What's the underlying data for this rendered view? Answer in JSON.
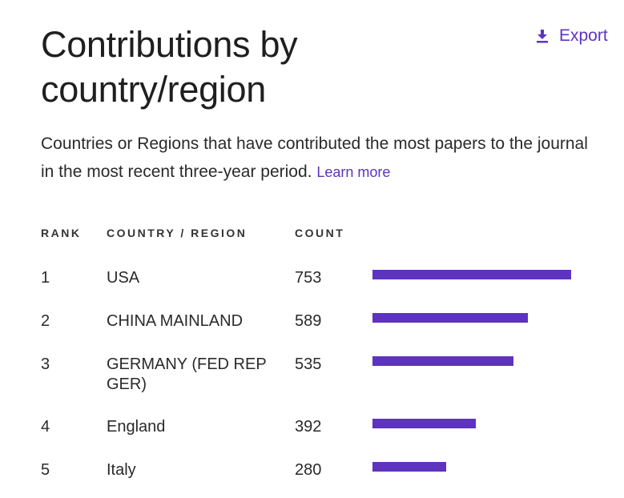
{
  "title": "Contributions by country/region",
  "export_label": "Export",
  "description": "Countries or Regions that have contributed the most papers to the journal in the most recent three-year period.",
  "learn_more": "Learn more",
  "table": {
    "headers": {
      "rank": "RANK",
      "country": "COUNTRY / REGION",
      "count": "COUNT"
    },
    "rows": [
      {
        "rank": "1",
        "country": "USA",
        "count": "753"
      },
      {
        "rank": "2",
        "country": "CHINA MAINLAND",
        "count": "589"
      },
      {
        "rank": "3",
        "country": "GERMANY (FED REP GER)",
        "count": "535"
      },
      {
        "rank": "4",
        "country": "England",
        "count": "392"
      },
      {
        "rank": "5",
        "country": "Italy",
        "count": "280"
      }
    ]
  },
  "chart_data": {
    "type": "bar",
    "categories": [
      "USA",
      "CHINA MAINLAND",
      "GERMANY (FED REP GER)",
      "England",
      "Italy"
    ],
    "values": [
      753,
      589,
      535,
      392,
      280
    ],
    "xlabel": "COUNT",
    "ylabel": "COUNTRY / REGION",
    "xlim": [
      0,
      753
    ]
  },
  "colors": {
    "accent": "#5e33bf",
    "text": "#212121"
  },
  "icons": {
    "export": "download-icon"
  }
}
